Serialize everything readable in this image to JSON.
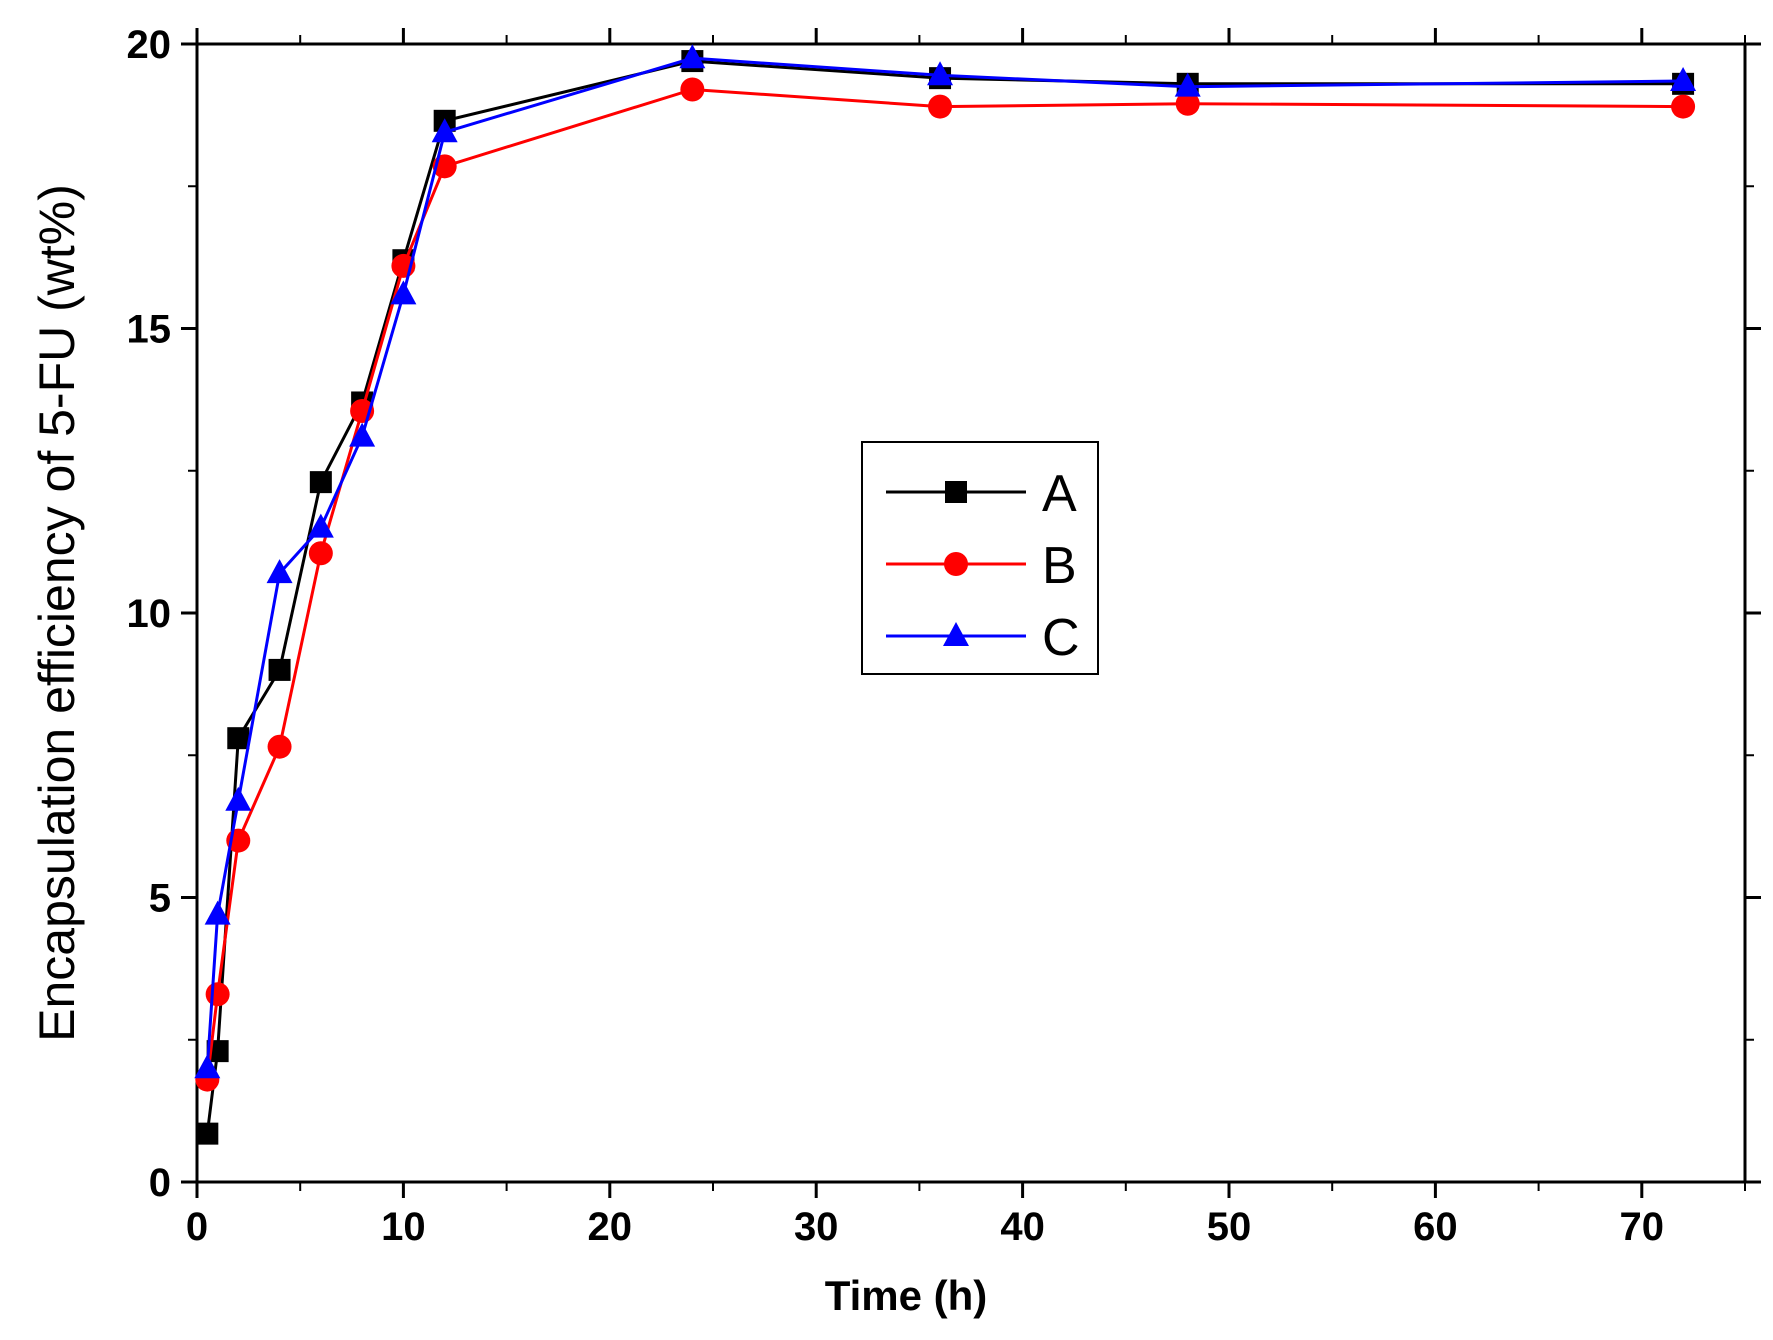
{
  "chart_data": {
    "type": "line",
    "title": "",
    "xlabel": "Time (h)",
    "ylabel": "Encapsulation efficiency of 5-FU (wt%)",
    "xlim": [
      0,
      75
    ],
    "ylim": [
      0,
      20
    ],
    "xticks": [
      0,
      10,
      20,
      30,
      40,
      50,
      60,
      70
    ],
    "yticks": [
      0,
      5,
      10,
      15,
      20
    ],
    "x_minor_step": 5,
    "y_minor_step": 2.5,
    "grid": false,
    "legend_position": "center",
    "series": [
      {
        "name": "A",
        "color": "#000000",
        "marker": "square",
        "points": [
          [
            0.5,
            0.85
          ],
          [
            1,
            2.3
          ],
          [
            2,
            7.8
          ],
          [
            4,
            9.0
          ],
          [
            6,
            12.3
          ],
          [
            8,
            13.7
          ],
          [
            10,
            16.2
          ],
          [
            12,
            18.65
          ],
          [
            24,
            19.7
          ],
          [
            36,
            19.4
          ],
          [
            48,
            19.3
          ],
          [
            72,
            19.3
          ]
        ]
      },
      {
        "name": "B",
        "color": "#ff0000",
        "marker": "circle",
        "points": [
          [
            0.5,
            1.8
          ],
          [
            1,
            3.3
          ],
          [
            2,
            6.0
          ],
          [
            4,
            7.65
          ],
          [
            6,
            11.05
          ],
          [
            8,
            13.55
          ],
          [
            10,
            16.1
          ],
          [
            12,
            17.85
          ],
          [
            24,
            19.2
          ],
          [
            36,
            18.9
          ],
          [
            48,
            18.95
          ],
          [
            72,
            18.9
          ]
        ]
      },
      {
        "name": "C",
        "color": "#0000ff",
        "marker": "triangle",
        "points": [
          [
            0.5,
            2.0
          ],
          [
            1,
            4.7
          ],
          [
            2,
            6.7
          ],
          [
            4,
            10.7
          ],
          [
            6,
            11.5
          ],
          [
            8,
            13.1
          ],
          [
            10,
            15.6
          ],
          [
            12,
            18.45
          ],
          [
            24,
            19.75
          ],
          [
            36,
            19.45
          ],
          [
            48,
            19.25
          ],
          [
            72,
            19.35
          ]
        ]
      }
    ]
  }
}
